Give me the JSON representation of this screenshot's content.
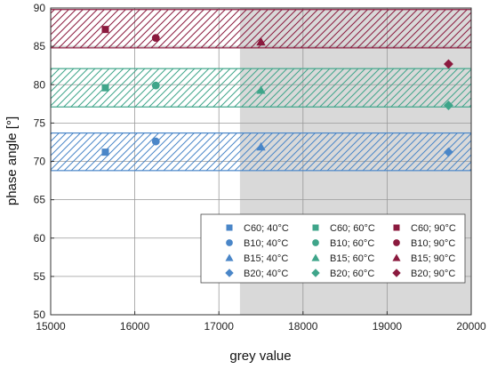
{
  "chart_data": {
    "type": "scatter",
    "xlabel": "grey value",
    "ylabel": "phase angle [°]",
    "xlim": [
      15000,
      20000
    ],
    "ylim": [
      50,
      90
    ],
    "xticks": [
      15000,
      16000,
      17000,
      18000,
      19000,
      20000
    ],
    "yticks": [
      50,
      55,
      60,
      65,
      70,
      75,
      80,
      85,
      90
    ],
    "grid": true,
    "legend_position": "bottom-right",
    "shaded_region": {
      "x_from": 17250,
      "x_to": 20000,
      "color": "#d9d9d9"
    },
    "bands": [
      {
        "temperature": "40°C",
        "y_from": 68.8,
        "y_to": 73.7,
        "color": "#4a86c8"
      },
      {
        "temperature": "60°C",
        "y_from": 77.1,
        "y_to": 82.1,
        "color": "#3fa58a"
      },
      {
        "temperature": "90°C",
        "y_from": 84.8,
        "y_to": 89.8,
        "color": "#8b1a3e"
      }
    ],
    "series": [
      {
        "name": "C60; 40°C",
        "marker": "square",
        "color": "#4a86c8",
        "points": [
          [
            15650,
            71.2
          ]
        ]
      },
      {
        "name": "B10; 40°C",
        "marker": "circle",
        "color": "#4a86c8",
        "points": [
          [
            16250,
            72.6
          ]
        ]
      },
      {
        "name": "B15; 40°C",
        "marker": "triangle",
        "color": "#4a86c8",
        "points": [
          [
            17500,
            71.9
          ]
        ]
      },
      {
        "name": "B20; 40°C",
        "marker": "diamond",
        "color": "#4a86c8",
        "points": [
          [
            19730,
            71.2
          ]
        ]
      },
      {
        "name": "C60; 60°C",
        "marker": "square",
        "color": "#3fa58a",
        "points": [
          [
            15650,
            79.6
          ]
        ]
      },
      {
        "name": "B10; 60°C",
        "marker": "circle",
        "color": "#3fa58a",
        "points": [
          [
            16250,
            79.9
          ]
        ]
      },
      {
        "name": "B15; 60°C",
        "marker": "triangle",
        "color": "#3fa58a",
        "points": [
          [
            17500,
            79.3
          ]
        ]
      },
      {
        "name": "B20; 60°C",
        "marker": "diamond",
        "color": "#3fa58a",
        "points": [
          [
            19730,
            77.3
          ]
        ]
      },
      {
        "name": "C60; 90°C",
        "marker": "square",
        "color": "#8b1a3e",
        "points": [
          [
            15650,
            87.2
          ]
        ]
      },
      {
        "name": "B10; 90°C",
        "marker": "circle",
        "color": "#8b1a3e",
        "points": [
          [
            16250,
            86.1
          ]
        ]
      },
      {
        "name": "B15; 90°C",
        "marker": "triangle",
        "color": "#8b1a3e",
        "points": [
          [
            17500,
            85.6
          ]
        ]
      },
      {
        "name": "B20; 90°C",
        "marker": "diamond",
        "color": "#8b1a3e",
        "points": [
          [
            19730,
            82.7
          ]
        ]
      }
    ]
  }
}
